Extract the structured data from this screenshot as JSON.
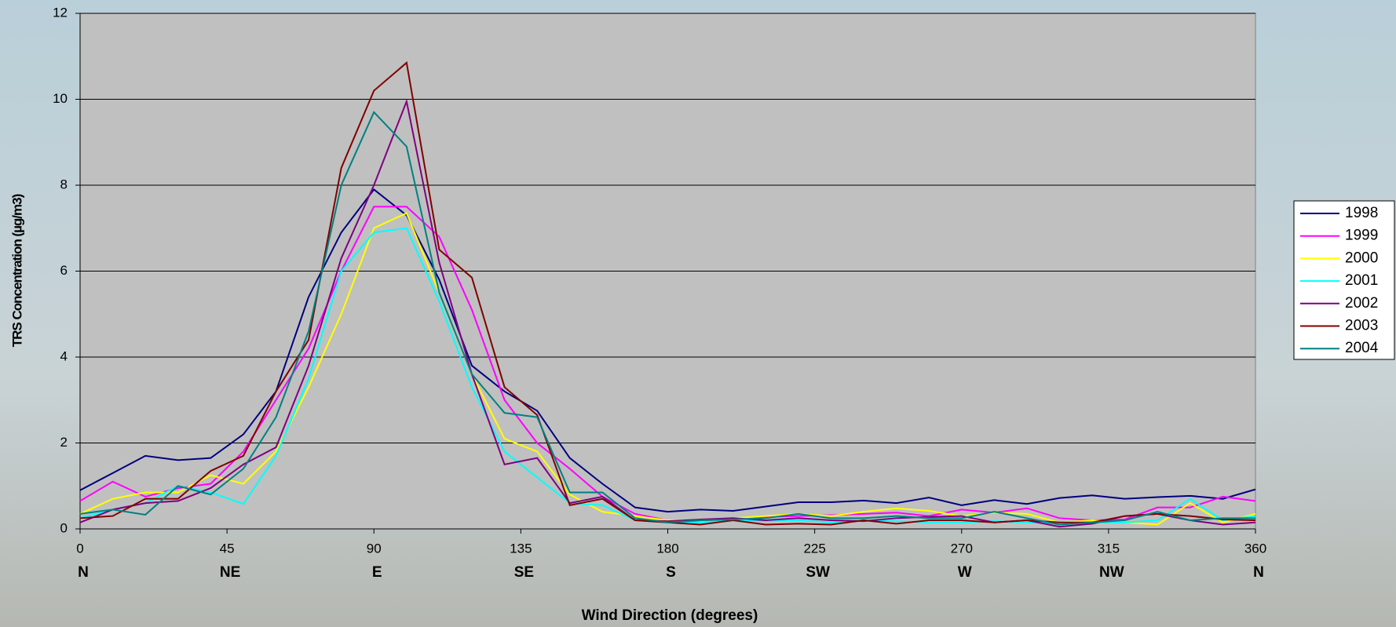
{
  "chart_data": {
    "type": "line",
    "x_label": "Wind Direction (degrees)",
    "y_label": "TRS Concentration (µg/m3)",
    "x": [
      0,
      10,
      20,
      30,
      40,
      50,
      60,
      70,
      80,
      90,
      100,
      110,
      120,
      130,
      140,
      150,
      160,
      170,
      180,
      190,
      200,
      210,
      220,
      230,
      240,
      250,
      260,
      270,
      280,
      290,
      300,
      310,
      320,
      330,
      340,
      350,
      360
    ],
    "xlim": [
      0,
      360
    ],
    "xticks": [
      0,
      45,
      90,
      135,
      180,
      225,
      270,
      315,
      360
    ],
    "direction_labels": [
      "N",
      "NE",
      "E",
      "SE",
      "S",
      "SW",
      "W",
      "NW",
      "N"
    ],
    "ylim": [
      0,
      12
    ],
    "yticks": [
      0,
      2,
      4,
      6,
      8,
      10,
      12
    ],
    "grid": true,
    "legend": "right",
    "series": [
      {
        "name": "1998",
        "color": "#000080",
        "values": [
          0.9,
          1.3,
          1.7,
          1.6,
          1.65,
          2.2,
          3.2,
          5.4,
          6.9,
          7.9,
          7.3,
          5.8,
          3.8,
          3.2,
          2.75,
          1.65,
          1.05,
          0.5,
          0.4,
          0.45,
          0.42,
          0.52,
          0.62,
          0.62,
          0.66,
          0.6,
          0.73,
          0.55,
          0.67,
          0.58,
          0.72,
          0.78,
          0.7,
          0.74,
          0.77,
          0.7,
          0.92
        ]
      },
      {
        "name": "1999",
        "color": "#ff00ff",
        "values": [
          0.65,
          1.1,
          0.75,
          0.95,
          1.05,
          1.8,
          3.0,
          4.2,
          6.0,
          7.5,
          7.5,
          6.8,
          5.1,
          3.0,
          2.0,
          1.4,
          0.75,
          0.35,
          0.2,
          0.2,
          0.22,
          0.28,
          0.3,
          0.32,
          0.35,
          0.38,
          0.3,
          0.45,
          0.38,
          0.48,
          0.25,
          0.2,
          0.22,
          0.5,
          0.5,
          0.75,
          0.65
        ]
      },
      {
        "name": "2000",
        "color": "#ffff00",
        "values": [
          0.35,
          0.7,
          0.85,
          0.85,
          1.25,
          1.05,
          1.8,
          3.3,
          5.0,
          7.0,
          7.35,
          5.5,
          3.6,
          2.1,
          1.8,
          0.8,
          0.4,
          0.3,
          0.2,
          0.2,
          0.25,
          0.3,
          0.35,
          0.3,
          0.4,
          0.48,
          0.42,
          0.3,
          0.38,
          0.35,
          0.15,
          0.2,
          0.15,
          0.1,
          0.6,
          0.15,
          0.35
        ]
      },
      {
        "name": "2001",
        "color": "#00ffff",
        "values": [
          0.25,
          0.45,
          0.6,
          1.0,
          0.85,
          0.58,
          1.7,
          3.5,
          6.0,
          6.9,
          7.0,
          5.3,
          3.3,
          1.8,
          1.2,
          0.6,
          0.55,
          0.2,
          0.15,
          0.15,
          0.2,
          0.18,
          0.2,
          0.15,
          0.2,
          0.18,
          0.15,
          0.15,
          0.18,
          0.15,
          0.12,
          0.15,
          0.15,
          0.2,
          0.7,
          0.2,
          0.3
        ]
      },
      {
        "name": "2002",
        "color": "#800080",
        "values": [
          0.15,
          0.45,
          0.6,
          0.65,
          0.95,
          1.5,
          1.9,
          3.8,
          6.3,
          8.0,
          9.95,
          6.2,
          3.6,
          1.5,
          1.65,
          0.6,
          0.75,
          0.2,
          0.18,
          0.22,
          0.25,
          0.2,
          0.25,
          0.2,
          0.18,
          0.25,
          0.28,
          0.3,
          0.15,
          0.2,
          0.05,
          0.12,
          0.3,
          0.35,
          0.2,
          0.1,
          0.15
        ]
      },
      {
        "name": "2003",
        "color": "#800000",
        "values": [
          0.25,
          0.3,
          0.7,
          0.7,
          1.35,
          1.7,
          3.2,
          4.4,
          8.4,
          10.2,
          10.85,
          6.5,
          5.85,
          3.3,
          2.65,
          0.55,
          0.7,
          0.2,
          0.15,
          0.1,
          0.2,
          0.1,
          0.12,
          0.1,
          0.2,
          0.12,
          0.2,
          0.2,
          0.15,
          0.2,
          0.15,
          0.15,
          0.3,
          0.35,
          0.3,
          0.22,
          0.2
        ]
      },
      {
        "name": "2004",
        "color": "#008080",
        "values": [
          0.35,
          0.45,
          0.33,
          1.0,
          0.8,
          1.4,
          2.6,
          4.6,
          8.0,
          9.7,
          8.9,
          5.5,
          3.6,
          2.7,
          2.6,
          0.85,
          0.85,
          0.25,
          0.15,
          0.2,
          0.22,
          0.25,
          0.35,
          0.25,
          0.25,
          0.3,
          0.25,
          0.25,
          0.4,
          0.25,
          0.1,
          0.15,
          0.2,
          0.4,
          0.2,
          0.25,
          0.25
        ]
      }
    ]
  }
}
